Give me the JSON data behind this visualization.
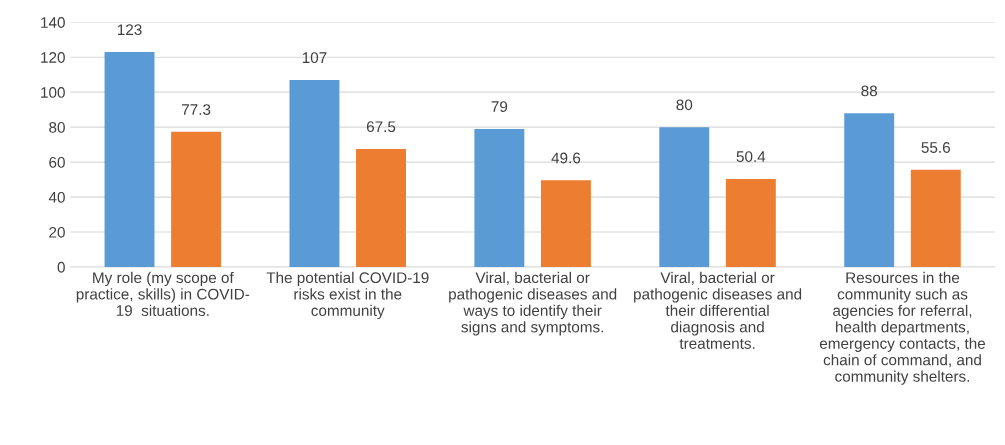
{
  "chart_data": {
    "type": "bar",
    "categories": [
      "My role (my scope of\npractice, skills) in COVID-\n19  situations.",
      "The potential COVID-19\nrisks exist in the\ncommunity",
      "Viral, bacterial or\npathogenic diseases and\nways to identify their\nsigns and symptoms.",
      "Viral, bacterial or\npathogenic diseases and\ntheir differential\ndiagnosis and\ntreatments.",
      "Resources in the\ncommunity such as\nagencies for referral,\nhealth departments,\nemergency contacts, the\nchain of command, and\ncommunity shelters."
    ],
    "series": [
      {
        "color": "#5b9bd5",
        "values": [
          123,
          107,
          79,
          80,
          88
        ]
      },
      {
        "color": "#ed7d31",
        "values": [
          77.3,
          67.5,
          49.6,
          50.4,
          55.6
        ]
      }
    ],
    "ylim": [
      0,
      140
    ],
    "yticks": [
      0,
      20,
      40,
      60,
      80,
      100,
      120,
      140
    ],
    "grid": "y",
    "data_labels": true,
    "legend": false
  }
}
